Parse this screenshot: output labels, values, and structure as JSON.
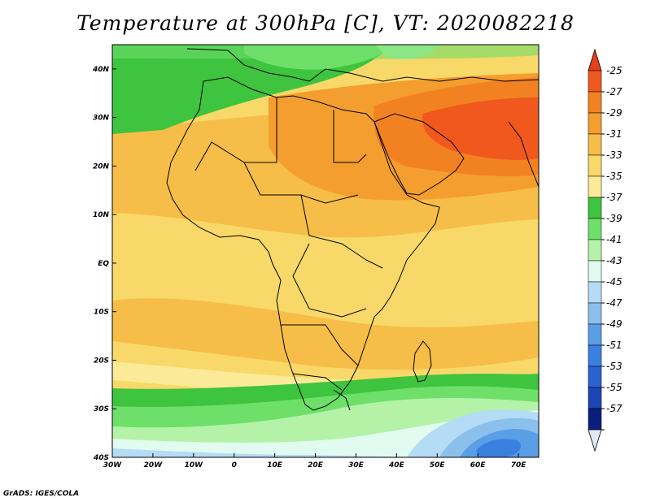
{
  "title": "Temperature at 300hPa [C], VT: 2020082218",
  "credit": "GrADS: IGES/COLA",
  "map": {
    "variable": "Temperature",
    "level": "300hPa",
    "units": "C",
    "lon_range": [
      -30,
      75
    ],
    "lat_range": [
      -40,
      45
    ],
    "lat_ticks": [
      {
        "label": "40N",
        "lat": 40
      },
      {
        "label": "30N",
        "lat": 30
      },
      {
        "label": "20N",
        "lat": 20
      },
      {
        "label": "10N",
        "lat": 10
      },
      {
        "label": "EQ",
        "lat": 0
      },
      {
        "label": "10S",
        "lat": -10
      },
      {
        "label": "20S",
        "lat": -20
      },
      {
        "label": "30S",
        "lat": -30
      },
      {
        "label": "40S",
        "lat": -40
      }
    ],
    "lon_ticks": [
      {
        "label": "30W",
        "lon": -30
      },
      {
        "label": "20W",
        "lon": -20
      },
      {
        "label": "10W",
        "lon": -10
      },
      {
        "label": "0",
        "lon": 0
      },
      {
        "label": "10E",
        "lon": 10
      },
      {
        "label": "20E",
        "lon": 20
      },
      {
        "label": "30E",
        "lon": 30
      },
      {
        "label": "40E",
        "lon": 40
      },
      {
        "label": "50E",
        "lon": 50
      },
      {
        "label": "60E",
        "lon": 60
      },
      {
        "label": "70E",
        "lon": 70
      }
    ]
  },
  "colorbar": {
    "levels": [
      {
        "label": "-25",
        "color": "#f0581e"
      },
      {
        "label": "-27",
        "color": "#f28221"
      },
      {
        "label": "-29",
        "color": "#f49e2f"
      },
      {
        "label": "-31",
        "color": "#f6be48"
      },
      {
        "label": "-33",
        "color": "#f8d868"
      },
      {
        "label": "-35",
        "color": "#fbeb98"
      },
      {
        "label": "-37",
        "color": "#3ec43e"
      },
      {
        "label": "-39",
        "color": "#6ee06a"
      },
      {
        "label": "-41",
        "color": "#b4f2a8"
      },
      {
        "label": "-43",
        "color": "#e2fbf0"
      },
      {
        "label": "-45",
        "color": "#b4dcf4"
      },
      {
        "label": "-47",
        "color": "#8cc0ec"
      },
      {
        "label": "-49",
        "color": "#5a9ee6"
      },
      {
        "label": "-51",
        "color": "#3a80e0"
      },
      {
        "label": "-53",
        "color": "#2a62d2"
      },
      {
        "label": "-55",
        "color": "#1b44b4"
      },
      {
        "label": "-57",
        "color": "#0a1f7c"
      }
    ],
    "top_arrow_color": "#e8401a",
    "bottom_arrow_color": "#e6e6fa"
  }
}
